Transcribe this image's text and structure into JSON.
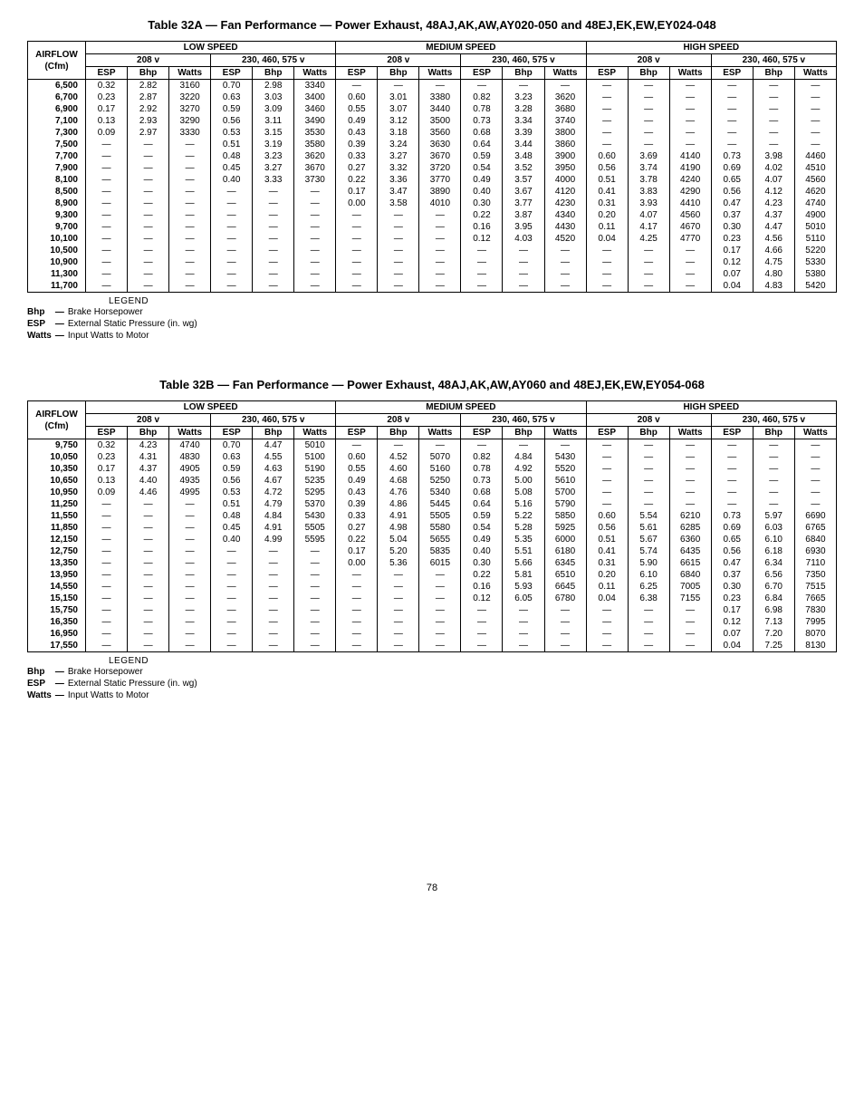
{
  "page_number": "78",
  "legend_title": "LEGEND",
  "legend_items": [
    {
      "abbr": "Bhp",
      "sep": "—",
      "desc": "Brake Horsepower"
    },
    {
      "abbr": "ESP",
      "sep": "—",
      "desc": "External Static Pressure (in. wg)"
    },
    {
      "abbr": "Watts",
      "sep": "—",
      "desc": "Input Watts to Motor"
    }
  ],
  "tables": [
    {
      "title": "Table 32A — Fan Performance — Power Exhaust, 48AJ,AK,AW,AY020-050 and 48EJ,EK,EW,EY024-048",
      "airflow_label": "AIRFLOW\n(Cfm)",
      "speed_headers": [
        "LOW SPEED",
        "MEDIUM SPEED",
        "HIGH SPEED"
      ],
      "volt_headers": [
        "208 v",
        "230, 460, 575 v",
        "208 v",
        "230, 460, 575 v",
        "208 v",
        "230, 460, 575 v"
      ],
      "col_headers": [
        "ESP",
        "Bhp",
        "Watts",
        "ESP",
        "Bhp",
        "Watts",
        "ESP",
        "Bhp",
        "Watts",
        "ESP",
        "Bhp",
        "Watts",
        "ESP",
        "Bhp",
        "Watts",
        "ESP",
        "Bhp",
        "Watts"
      ],
      "rows": [
        {
          "cfm": "6,500",
          "v": [
            "0.32",
            "2.82",
            "3160",
            "0.70",
            "2.98",
            "3340",
            "—",
            "—",
            "—",
            "—",
            "—",
            "—",
            "—",
            "—",
            "—",
            "—",
            "—",
            "—"
          ]
        },
        {
          "cfm": "6,700",
          "v": [
            "0.23",
            "2.87",
            "3220",
            "0.63",
            "3.03",
            "3400",
            "0.60",
            "3.01",
            "3380",
            "0.82",
            "3.23",
            "3620",
            "—",
            "—",
            "—",
            "—",
            "—",
            "—"
          ]
        },
        {
          "cfm": "6,900",
          "v": [
            "0.17",
            "2.92",
            "3270",
            "0.59",
            "3.09",
            "3460",
            "0.55",
            "3.07",
            "3440",
            "0.78",
            "3.28",
            "3680",
            "—",
            "—",
            "—",
            "—",
            "—",
            "—"
          ]
        },
        {
          "cfm": "7,100",
          "v": [
            "0.13",
            "2.93",
            "3290",
            "0.56",
            "3.11",
            "3490",
            "0.49",
            "3.12",
            "3500",
            "0.73",
            "3.34",
            "3740",
            "—",
            "—",
            "—",
            "—",
            "—",
            "—"
          ]
        },
        {
          "cfm": "7,300",
          "v": [
            "0.09",
            "2.97",
            "3330",
            "0.53",
            "3.15",
            "3530",
            "0.43",
            "3.18",
            "3560",
            "0.68",
            "3.39",
            "3800",
            "—",
            "—",
            "—",
            "—",
            "—",
            "—"
          ]
        },
        {
          "cfm": "7,500",
          "v": [
            "—",
            "—",
            "—",
            "0.51",
            "3.19",
            "3580",
            "0.39",
            "3.24",
            "3630",
            "0.64",
            "3.44",
            "3860",
            "—",
            "—",
            "—",
            "—",
            "—",
            "—"
          ]
        },
        {
          "cfm": "7,700",
          "v": [
            "—",
            "—",
            "—",
            "0.48",
            "3.23",
            "3620",
            "0.33",
            "3.27",
            "3670",
            "0.59",
            "3.48",
            "3900",
            "0.60",
            "3.69",
            "4140",
            "0.73",
            "3.98",
            "4460"
          ]
        },
        {
          "cfm": "7,900",
          "v": [
            "—",
            "—",
            "—",
            "0.45",
            "3.27",
            "3670",
            "0.27",
            "3.32",
            "3720",
            "0.54",
            "3.52",
            "3950",
            "0.56",
            "3.74",
            "4190",
            "0.69",
            "4.02",
            "4510"
          ]
        },
        {
          "cfm": "8,100",
          "v": [
            "—",
            "—",
            "—",
            "0.40",
            "3.33",
            "3730",
            "0.22",
            "3.36",
            "3770",
            "0.49",
            "3.57",
            "4000",
            "0.51",
            "3.78",
            "4240",
            "0.65",
            "4.07",
            "4560"
          ]
        },
        {
          "cfm": "8,500",
          "v": [
            "—",
            "—",
            "—",
            "—",
            "—",
            "—",
            "0.17",
            "3.47",
            "3890",
            "0.40",
            "3.67",
            "4120",
            "0.41",
            "3.83",
            "4290",
            "0.56",
            "4.12",
            "4620"
          ]
        },
        {
          "cfm": "8,900",
          "v": [
            "—",
            "—",
            "—",
            "—",
            "—",
            "—",
            "0.00",
            "3.58",
            "4010",
            "0.30",
            "3.77",
            "4230",
            "0.31",
            "3.93",
            "4410",
            "0.47",
            "4.23",
            "4740"
          ]
        },
        {
          "cfm": "9,300",
          "v": [
            "—",
            "—",
            "—",
            "—",
            "—",
            "—",
            "—",
            "—",
            "—",
            "0.22",
            "3.87",
            "4340",
            "0.20",
            "4.07",
            "4560",
            "0.37",
            "4.37",
            "4900"
          ]
        },
        {
          "cfm": "9,700",
          "v": [
            "—",
            "—",
            "—",
            "—",
            "—",
            "—",
            "—",
            "—",
            "—",
            "0.16",
            "3.95",
            "4430",
            "0.11",
            "4.17",
            "4670",
            "0.30",
            "4.47",
            "5010"
          ]
        },
        {
          "cfm": "10,100",
          "v": [
            "—",
            "—",
            "—",
            "—",
            "—",
            "—",
            "—",
            "—",
            "—",
            "0.12",
            "4.03",
            "4520",
            "0.04",
            "4.25",
            "4770",
            "0.23",
            "4.56",
            "5110"
          ]
        },
        {
          "cfm": "10,500",
          "v": [
            "—",
            "—",
            "—",
            "—",
            "—",
            "—",
            "—",
            "—",
            "—",
            "—",
            "—",
            "—",
            "—",
            "—",
            "—",
            "0.17",
            "4.66",
            "5220"
          ]
        },
        {
          "cfm": "10,900",
          "v": [
            "—",
            "—",
            "—",
            "—",
            "—",
            "—",
            "—",
            "—",
            "—",
            "—",
            "—",
            "—",
            "—",
            "—",
            "—",
            "0.12",
            "4.75",
            "5330"
          ]
        },
        {
          "cfm": "11,300",
          "v": [
            "—",
            "—",
            "—",
            "—",
            "—",
            "—",
            "—",
            "—",
            "—",
            "—",
            "—",
            "—",
            "—",
            "—",
            "—",
            "0.07",
            "4.80",
            "5380"
          ]
        },
        {
          "cfm": "11,700",
          "v": [
            "—",
            "—",
            "—",
            "—",
            "—",
            "—",
            "—",
            "—",
            "—",
            "—",
            "—",
            "—",
            "—",
            "—",
            "—",
            "0.04",
            "4.83",
            "5420"
          ]
        }
      ]
    },
    {
      "title": "Table 32B — Fan Performance — Power Exhaust, 48AJ,AK,AW,AY060 and 48EJ,EK,EW,EY054-068",
      "airflow_label": "AIRFLOW\n(Cfm)",
      "speed_headers": [
        "LOW SPEED",
        "MEDIUM SPEED",
        "HIGH SPEED"
      ],
      "volt_headers": [
        "208 v",
        "230, 460, 575 v",
        "208 v",
        "230, 460, 575 v",
        "208 v",
        "230, 460, 575 v"
      ],
      "col_headers": [
        "ESP",
        "Bhp",
        "Watts",
        "ESP",
        "Bhp",
        "Watts",
        "ESP",
        "Bhp",
        "Watts",
        "ESP",
        "Bhp",
        "Watts",
        "ESP",
        "Bhp",
        "Watts",
        "ESP",
        "Bhp",
        "Watts"
      ],
      "rows": [
        {
          "cfm": "9,750",
          "v": [
            "0.32",
            "4.23",
            "4740",
            "0.70",
            "4.47",
            "5010",
            "—",
            "—",
            "—",
            "—",
            "—",
            "—",
            "—",
            "—",
            "—",
            "—",
            "—",
            "—"
          ]
        },
        {
          "cfm": "10,050",
          "v": [
            "0.23",
            "4.31",
            "4830",
            "0.63",
            "4.55",
            "5100",
            "0.60",
            "4.52",
            "5070",
            "0.82",
            "4.84",
            "5430",
            "—",
            "—",
            "—",
            "—",
            "—",
            "—"
          ]
        },
        {
          "cfm": "10,350",
          "v": [
            "0.17",
            "4.37",
            "4905",
            "0.59",
            "4.63",
            "5190",
            "0.55",
            "4.60",
            "5160",
            "0.78",
            "4.92",
            "5520",
            "—",
            "—",
            "—",
            "—",
            "—",
            "—"
          ]
        },
        {
          "cfm": "10,650",
          "v": [
            "0.13",
            "4.40",
            "4935",
            "0.56",
            "4.67",
            "5235",
            "0.49",
            "4.68",
            "5250",
            "0.73",
            "5.00",
            "5610",
            "—",
            "—",
            "—",
            "—",
            "—",
            "—"
          ]
        },
        {
          "cfm": "10,950",
          "v": [
            "0.09",
            "4.46",
            "4995",
            "0.53",
            "4.72",
            "5295",
            "0.43",
            "4.76",
            "5340",
            "0.68",
            "5.08",
            "5700",
            "—",
            "—",
            "—",
            "—",
            "—",
            "—"
          ]
        },
        {
          "cfm": "11,250",
          "v": [
            "—",
            "—",
            "—",
            "0.51",
            "4.79",
            "5370",
            "0.39",
            "4.86",
            "5445",
            "0.64",
            "5.16",
            "5790",
            "—",
            "—",
            "—",
            "—",
            "—",
            "—"
          ]
        },
        {
          "cfm": "11,550",
          "v": [
            "—",
            "—",
            "—",
            "0.48",
            "4.84",
            "5430",
            "0.33",
            "4.91",
            "5505",
            "0.59",
            "5.22",
            "5850",
            "0.60",
            "5.54",
            "6210",
            "0.73",
            "5.97",
            "6690"
          ]
        },
        {
          "cfm": "11,850",
          "v": [
            "—",
            "—",
            "—",
            "0.45",
            "4.91",
            "5505",
            "0.27",
            "4.98",
            "5580",
            "0.54",
            "5.28",
            "5925",
            "0.56",
            "5.61",
            "6285",
            "0.69",
            "6.03",
            "6765"
          ]
        },
        {
          "cfm": "12,150",
          "v": [
            "—",
            "—",
            "—",
            "0.40",
            "4.99",
            "5595",
            "0.22",
            "5.04",
            "5655",
            "0.49",
            "5.35",
            "6000",
            "0.51",
            "5.67",
            "6360",
            "0.65",
            "6.10",
            "6840"
          ]
        },
        {
          "cfm": "12,750",
          "v": [
            "—",
            "—",
            "—",
            "—",
            "—",
            "—",
            "0.17",
            "5.20",
            "5835",
            "0.40",
            "5.51",
            "6180",
            "0.41",
            "5.74",
            "6435",
            "0.56",
            "6.18",
            "6930"
          ]
        },
        {
          "cfm": "13,350",
          "v": [
            "—",
            "—",
            "—",
            "—",
            "—",
            "—",
            "0.00",
            "5.36",
            "6015",
            "0.30",
            "5.66",
            "6345",
            "0.31",
            "5.90",
            "6615",
            "0.47",
            "6.34",
            "7110"
          ]
        },
        {
          "cfm": "13,950",
          "v": [
            "—",
            "—",
            "—",
            "—",
            "—",
            "—",
            "—",
            "—",
            "—",
            "0.22",
            "5.81",
            "6510",
            "0.20",
            "6.10",
            "6840",
            "0.37",
            "6.56",
            "7350"
          ]
        },
        {
          "cfm": "14,550",
          "v": [
            "—",
            "—",
            "—",
            "—",
            "—",
            "—",
            "—",
            "—",
            "—",
            "0.16",
            "5.93",
            "6645",
            "0.11",
            "6.25",
            "7005",
            "0.30",
            "6.70",
            "7515"
          ]
        },
        {
          "cfm": "15,150",
          "v": [
            "—",
            "—",
            "—",
            "—",
            "—",
            "—",
            "—",
            "—",
            "—",
            "0.12",
            "6.05",
            "6780",
            "0.04",
            "6.38",
            "7155",
            "0.23",
            "6.84",
            "7665"
          ]
        },
        {
          "cfm": "15,750",
          "v": [
            "—",
            "—",
            "—",
            "—",
            "—",
            "—",
            "—",
            "—",
            "—",
            "—",
            "—",
            "—",
            "—",
            "—",
            "—",
            "0.17",
            "6.98",
            "7830"
          ]
        },
        {
          "cfm": "16,350",
          "v": [
            "—",
            "—",
            "—",
            "—",
            "—",
            "—",
            "—",
            "—",
            "—",
            "—",
            "—",
            "—",
            "—",
            "—",
            "—",
            "0.12",
            "7.13",
            "7995"
          ]
        },
        {
          "cfm": "16,950",
          "v": [
            "—",
            "—",
            "—",
            "—",
            "—",
            "—",
            "—",
            "—",
            "—",
            "—",
            "—",
            "—",
            "—",
            "—",
            "—",
            "0.07",
            "7.20",
            "8070"
          ]
        },
        {
          "cfm": "17,550",
          "v": [
            "—",
            "—",
            "—",
            "—",
            "—",
            "—",
            "—",
            "—",
            "—",
            "—",
            "—",
            "—",
            "—",
            "—",
            "—",
            "0.04",
            "7.25",
            "8130"
          ]
        }
      ]
    }
  ]
}
